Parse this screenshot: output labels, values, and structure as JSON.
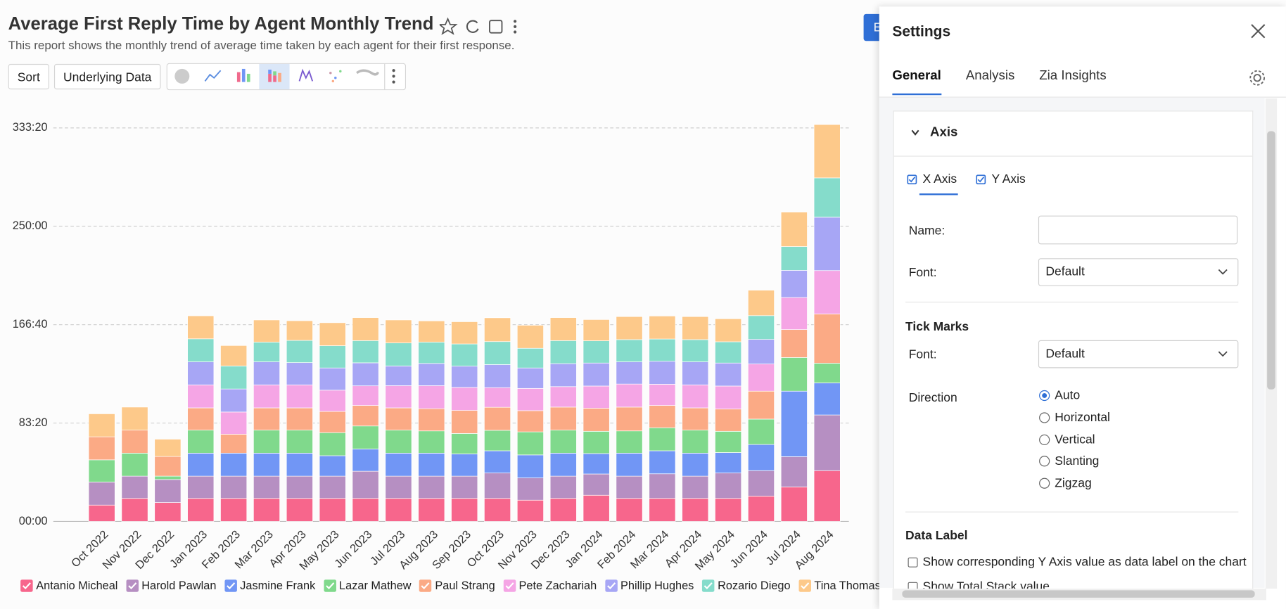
{
  "header": {
    "title": "Average First Reply Time by Agent Monthly Trend",
    "subtitle": "This report shows the monthly trend of average time taken by each agent for their first response."
  },
  "toolbar": {
    "buttons": [
      "Sort",
      "Underlying Data"
    ],
    "action_button": "E"
  },
  "chart_data": {
    "type": "bar",
    "stacked": true,
    "grid": true,
    "legend": "bottom",
    "categories": [
      "Oct 2022",
      "Nov 2022",
      "Dec 2022",
      "Jan 2023",
      "Feb 2023",
      "Mar 2023",
      "Apr 2023",
      "May 2023",
      "Jun 2023",
      "Jul 2023",
      "Aug 2023",
      "Sep 2023",
      "Oct 2023",
      "Nov 2023",
      "Dec 2023",
      "Jan 2024",
      "Feb 2024",
      "Mar 2024",
      "Apr 2024",
      "May 2024",
      "Jun 2024",
      "Jul 2024",
      "Aug 2024"
    ],
    "ylim": [
      0,
      20000
    ],
    "yticks": [
      {
        "value": 0,
        "label": "00:00"
      },
      {
        "value": 5000,
        "label": "83:20"
      },
      {
        "value": 10000,
        "label": "166:40"
      },
      {
        "value": 15000,
        "label": "250:00"
      },
      {
        "value": 20000,
        "label": "333:20"
      }
    ],
    "series": [
      {
        "name": "Antanio Micheal",
        "color": "#f7668c",
        "values": [
          830,
          1170,
          960,
          1170,
          1170,
          1170,
          1170,
          1170,
          1170,
          1170,
          1170,
          1170,
          1170,
          1080,
          1170,
          1330,
          1170,
          1170,
          1170,
          1170,
          1290,
          1750,
          2580
        ]
      },
      {
        "name": "Harold Pawlan",
        "color": "#b68fc2",
        "values": [
          1170,
          1130,
          1170,
          1130,
          1130,
          1130,
          1130,
          1130,
          1380,
          1130,
          1130,
          1130,
          1290,
          1130,
          1130,
          1080,
          1130,
          1250,
          1130,
          1290,
          1290,
          1540,
          2830
        ]
      },
      {
        "name": "Jasmine Frank",
        "color": "#7196f5",
        "values": [
          0,
          0,
          0,
          1170,
          1170,
          1170,
          1170,
          1040,
          1130,
          1170,
          1170,
          1130,
          1130,
          1170,
          1170,
          1040,
          1170,
          1170,
          1170,
          1040,
          1330,
          3330,
          1630
        ]
      },
      {
        "name": "Lazar Mathew",
        "color": "#80d98c",
        "values": [
          1130,
          1170,
          170,
          1170,
          0,
          1170,
          1170,
          1170,
          1170,
          1170,
          1130,
          1040,
          1040,
          1170,
          1170,
          1130,
          1130,
          1170,
          1170,
          1080,
          1290,
          1710,
          1000
        ]
      },
      {
        "name": "Paul Strang",
        "color": "#fbaa85",
        "values": [
          1170,
          1170,
          1000,
          1130,
          960,
          1130,
          1130,
          1080,
          1040,
          1130,
          1130,
          1170,
          1170,
          1080,
          1170,
          1170,
          1210,
          1130,
          1130,
          1130,
          1420,
          1420,
          2500
        ]
      },
      {
        "name": "Pete Zachariah",
        "color": "#f5a5e5",
        "values": [
          0,
          0,
          0,
          1170,
          1130,
          1170,
          1170,
          1080,
          1000,
          1130,
          1170,
          1170,
          1000,
          1130,
          1040,
          1130,
          1170,
          1080,
          1170,
          1170,
          1380,
          1630,
          2210
        ]
      },
      {
        "name": "Phillip Hughes",
        "color": "#a7a6f5",
        "values": [
          0,
          0,
          0,
          1170,
          1170,
          1170,
          1130,
          1130,
          1170,
          1000,
          1130,
          1080,
          1170,
          1040,
          1170,
          1170,
          1130,
          1170,
          1170,
          1170,
          1250,
          1380,
          2710
        ]
      },
      {
        "name": "Rozario Diego",
        "color": "#85dccb",
        "values": [
          0,
          0,
          0,
          1170,
          1170,
          1000,
          1130,
          1130,
          1130,
          1170,
          1080,
          1130,
          1170,
          1000,
          1170,
          1130,
          1130,
          1130,
          1130,
          1080,
          1210,
          1210,
          2000
        ]
      },
      {
        "name": "Tina Thomas",
        "color": "#fdc98a",
        "values": [
          1170,
          1170,
          880,
          1170,
          1040,
          1130,
          1000,
          1170,
          1170,
          1170,
          1080,
          1130,
          1210,
          1170,
          1170,
          1080,
          1170,
          1170,
          1170,
          1170,
          1290,
          1750,
          2710
        ]
      }
    ]
  },
  "settings": {
    "title": "Settings",
    "tabs": [
      "General",
      "Analysis",
      "Zia Insights"
    ],
    "axis": {
      "heading": "Axis",
      "checkboxes": [
        "X Axis",
        "Y Axis"
      ],
      "name_field": {
        "label": "Name:"
      },
      "font": {
        "label": "Font:",
        "value": "Default"
      }
    },
    "tick_marks": {
      "heading": "Tick Marks",
      "font": {
        "label": "Font:",
        "value": "Default"
      },
      "direction": {
        "label": "Direction",
        "options": [
          "Auto",
          "Horizontal",
          "Vertical",
          "Slanting",
          "Zigzag"
        ]
      }
    },
    "data_label": {
      "heading": "Data Label",
      "options": [
        "Show corresponding Y Axis value as data label on the chart",
        "Show Total Stack value"
      ]
    }
  }
}
